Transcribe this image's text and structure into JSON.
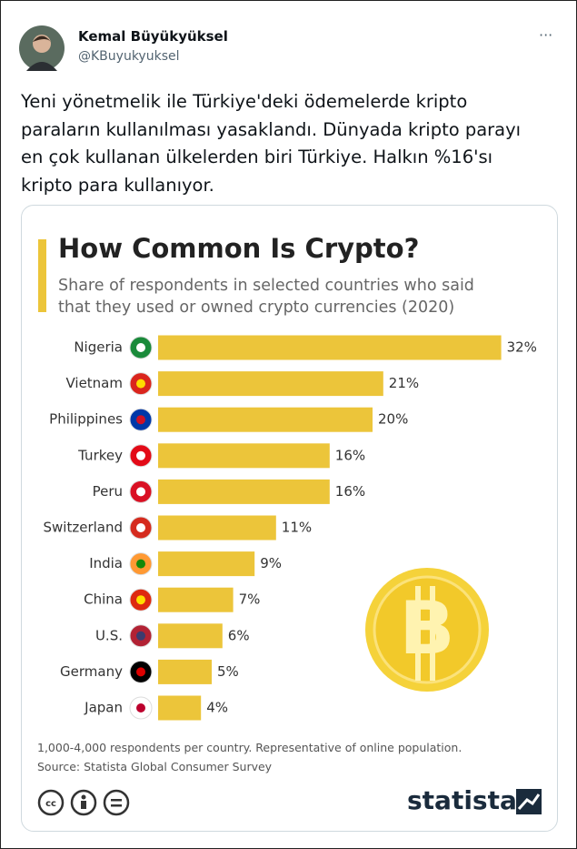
{
  "tweet": {
    "author_name": "Kemal Büyükyüksel",
    "handle": "@KBuyukyuksel",
    "menu": "···",
    "text_lines": [
      "Yeni yönetmelik ile Türkiye'deki ödemelerde kripto",
      "paraların kullanılması yasaklandı. Dünyada kripto parayı",
      "en çok kullanan ülkelerden biri Türkiye. Halkın %16'sı",
      "kripto para kullanıyor."
    ]
  },
  "chart_data": {
    "type": "bar",
    "orientation": "horizontal",
    "title": "How Common Is Crypto?",
    "subtitle": "Share of respondents in selected countries who said that they used or owned crypto currencies (2020)",
    "categories": [
      "Nigeria",
      "Vietnam",
      "Philippines",
      "Turkey",
      "Peru",
      "Switzerland",
      "India",
      "China",
      "U.S.",
      "Germany",
      "Japan"
    ],
    "values": [
      32,
      21,
      20,
      16,
      16,
      11,
      9,
      7,
      6,
      5,
      4
    ],
    "value_labels": [
      "32%",
      "21%",
      "20%",
      "16%",
      "16%",
      "11%",
      "9%",
      "7%",
      "6%",
      "5%",
      "4%"
    ],
    "color": "#ecc53a",
    "notes": [
      "1,000-4,000 respondents per country. Representative of online population.",
      "Source: Statista Global Consumer Survey"
    ],
    "brand": "statista"
  }
}
